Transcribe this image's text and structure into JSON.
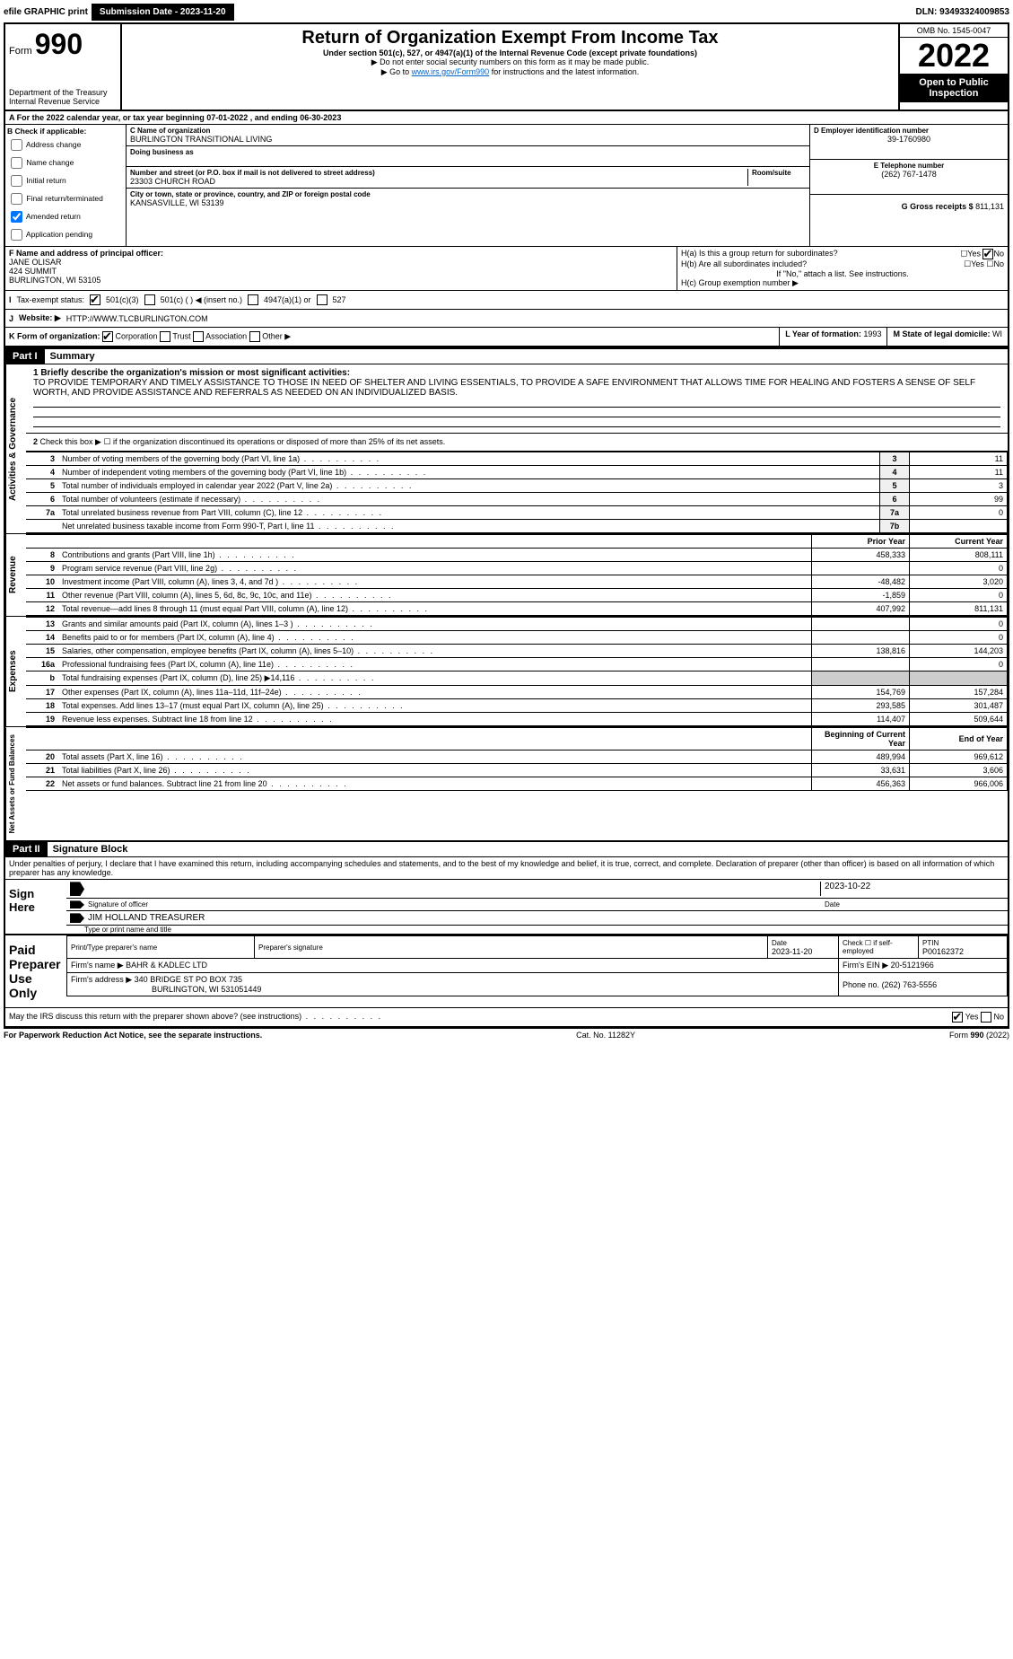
{
  "header": {
    "efile": "efile GRAPHIC print",
    "submission_label": "Submission Date - 2023-11-20",
    "dln": "DLN: 93493324009853"
  },
  "form": {
    "form_label": "Form",
    "form_number": "990",
    "title": "Return of Organization Exempt From Income Tax",
    "subtitle": "Under section 501(c), 527, or 4947(a)(1) of the Internal Revenue Code (except private foundations)",
    "ssn_warning": "▶ Do not enter social security numbers on this form as it may be made public.",
    "goto_prefix": "▶ Go to ",
    "goto_link": "www.irs.gov/Form990",
    "goto_suffix": " for instructions and the latest information.",
    "dept": "Department of the Treasury",
    "irs": "Internal Revenue Service",
    "omb": "OMB No. 1545-0047",
    "year": "2022",
    "open_public": "Open to Public Inspection"
  },
  "section_a": {
    "line": "A For the 2022 calendar year, or tax year beginning 07-01-2022   , and ending 06-30-2023"
  },
  "section_b": {
    "header": "B Check if applicable:",
    "items": [
      "Address change",
      "Name change",
      "Initial return",
      "Final return/terminated",
      "Amended return",
      "Application pending"
    ],
    "checked_amended": true
  },
  "section_c": {
    "name_label": "C Name of organization",
    "name": "BURLINGTON TRANSITIONAL LIVING",
    "dba_label": "Doing business as",
    "addr_label": "Number and street (or P.O. box if mail is not delivered to street address)",
    "room_label": "Room/suite",
    "addr": "23303 CHURCH ROAD",
    "city_label": "City or town, state or province, country, and ZIP or foreign postal code",
    "city": "KANSASVILLE, WI  53139"
  },
  "section_d": {
    "label": "D Employer identification number",
    "ein": "39-1760980"
  },
  "section_e": {
    "label": "E Telephone number",
    "phone": "(262) 767-1478"
  },
  "section_g": {
    "label": "G Gross receipts $",
    "amount": "811,131"
  },
  "section_f": {
    "label": "F  Name and address of principal officer:",
    "name": "JANE OLISAR",
    "addr1": "424 SUMMIT",
    "addr2": "BURLINGTON, WI  53105"
  },
  "section_h": {
    "ha": "H(a)  Is this a group return for subordinates?",
    "hb": "H(b)  Are all subordinates included?",
    "hb_note": "If \"No,\" attach a list. See instructions.",
    "hc": "H(c)  Group exemption number ▶",
    "yes": "Yes",
    "no": "No"
  },
  "tax_exempt": {
    "label": "Tax-exempt status:",
    "opt1": "501(c)(3)",
    "opt2": "501(c) (   ) ◀ (insert no.)",
    "opt3": "4947(a)(1) or",
    "opt4": "527"
  },
  "section_j": {
    "label": "J",
    "website_label": "Website: ▶",
    "website": "HTTP://WWW.TLCBURLINGTON.COM"
  },
  "section_k": {
    "label": "K Form of organization:",
    "opts": [
      "Corporation",
      "Trust",
      "Association",
      "Other ▶"
    ]
  },
  "section_l": {
    "label": "L Year of formation:",
    "year": "1993"
  },
  "section_m": {
    "label": "M State of legal domicile:",
    "state": "WI"
  },
  "part1": {
    "header": "Part I",
    "title": "Summary",
    "line1_label": "1 Briefly describe the organization's mission or most significant activities:",
    "mission": "TO PROVIDE TEMPORARY AND TIMELY ASSISTANCE TO THOSE IN NEED OF SHELTER AND LIVING ESSENTIALS, TO PROVIDE A SAFE ENVIRONMENT THAT ALLOWS TIME FOR HEALING AND FOSTERS A SENSE OF SELF WORTH, AND PROVIDE ASSISTANCE AND REFERRALS AS NEEDED ON AN INDIVIDUALIZED BASIS.",
    "line2": "Check this box ▶ ☐ if the organization discontinued its operations or disposed of more than 25% of its net assets.",
    "governance_rows": [
      {
        "n": "3",
        "desc": "Number of voting members of the governing body (Part VI, line 1a)",
        "box": "3",
        "val": "11"
      },
      {
        "n": "4",
        "desc": "Number of independent voting members of the governing body (Part VI, line 1b)",
        "box": "4",
        "val": "11"
      },
      {
        "n": "5",
        "desc": "Total number of individuals employed in calendar year 2022 (Part V, line 2a)",
        "box": "5",
        "val": "3"
      },
      {
        "n": "6",
        "desc": "Total number of volunteers (estimate if necessary)",
        "box": "6",
        "val": "99"
      },
      {
        "n": "7a",
        "desc": "Total unrelated business revenue from Part VIII, column (C), line 12",
        "box": "7a",
        "val": "0"
      },
      {
        "n": "",
        "desc": "Net unrelated business taxable income from Form 990-T, Part I, line 11",
        "box": "7b",
        "val": ""
      }
    ],
    "prior_year": "Prior Year",
    "current_year": "Current Year",
    "revenue_rows": [
      {
        "n": "8",
        "desc": "Contributions and grants (Part VIII, line 1h)",
        "py": "458,333",
        "cy": "808,111"
      },
      {
        "n": "9",
        "desc": "Program service revenue (Part VIII, line 2g)",
        "py": "",
        "cy": "0"
      },
      {
        "n": "10",
        "desc": "Investment income (Part VIII, column (A), lines 3, 4, and 7d )",
        "py": "-48,482",
        "cy": "3,020"
      },
      {
        "n": "11",
        "desc": "Other revenue (Part VIII, column (A), lines 5, 6d, 8c, 9c, 10c, and 11e)",
        "py": "-1,859",
        "cy": "0"
      },
      {
        "n": "12",
        "desc": "Total revenue—add lines 8 through 11 (must equal Part VIII, column (A), line 12)",
        "py": "407,992",
        "cy": "811,131"
      }
    ],
    "expense_rows": [
      {
        "n": "13",
        "desc": "Grants and similar amounts paid (Part IX, column (A), lines 1–3 )",
        "py": "",
        "cy": "0"
      },
      {
        "n": "14",
        "desc": "Benefits paid to or for members (Part IX, column (A), line 4)",
        "py": "",
        "cy": "0"
      },
      {
        "n": "15",
        "desc": "Salaries, other compensation, employee benefits (Part IX, column (A), lines 5–10)",
        "py": "138,816",
        "cy": "144,203"
      },
      {
        "n": "16a",
        "desc": "Professional fundraising fees (Part IX, column (A), line 11e)",
        "py": "",
        "cy": "0"
      },
      {
        "n": "b",
        "desc": "Total fundraising expenses (Part IX, column (D), line 25) ▶14,116",
        "py": "shaded",
        "cy": "shaded"
      },
      {
        "n": "17",
        "desc": "Other expenses (Part IX, column (A), lines 11a–11d, 11f–24e)",
        "py": "154,769",
        "cy": "157,284"
      },
      {
        "n": "18",
        "desc": "Total expenses. Add lines 13–17 (must equal Part IX, column (A), line 25)",
        "py": "293,585",
        "cy": "301,487"
      },
      {
        "n": "19",
        "desc": "Revenue less expenses. Subtract line 18 from line 12",
        "py": "114,407",
        "cy": "509,644"
      }
    ],
    "begin_year": "Beginning of Current Year",
    "end_year": "End of Year",
    "asset_rows": [
      {
        "n": "20",
        "desc": "Total assets (Part X, line 16)",
        "py": "489,994",
        "cy": "969,612"
      },
      {
        "n": "21",
        "desc": "Total liabilities (Part X, line 26)",
        "py": "33,631",
        "cy": "3,606"
      },
      {
        "n": "22",
        "desc": "Net assets or fund balances. Subtract line 21 from line 20",
        "py": "456,363",
        "cy": "966,006"
      }
    ],
    "vlabels": {
      "gov": "Activities & Governance",
      "rev": "Revenue",
      "exp": "Expenses",
      "net": "Net Assets or Fund Balances"
    }
  },
  "part2": {
    "header": "Part II",
    "title": "Signature Block",
    "penalty": "Under penalties of perjury, I declare that I have examined this return, including accompanying schedules and statements, and to the best of my knowledge and belief, it is true, correct, and complete. Declaration of preparer (other than officer) is based on all information of which preparer has any knowledge.",
    "sign_here": "Sign Here",
    "sig_date": "2023-10-22",
    "sig_officer_label": "Signature of officer",
    "date_label": "Date",
    "officer_name": "JIM HOLLAND  TREASURER",
    "type_name_label": "Type or print name and title",
    "paid_prep": "Paid Preparer Use Only",
    "prep_name_label": "Print/Type preparer's name",
    "prep_sig_label": "Preparer's signature",
    "prep_date": "2023-11-20",
    "check_if": "Check ☐ if self-employed",
    "ptin_label": "PTIN",
    "ptin": "P00162372",
    "firm_name_label": "Firm's name    ▶",
    "firm_name": "BAHR & KADLEC LTD",
    "firm_ein_label": "Firm's EIN ▶",
    "firm_ein": "20-5121966",
    "firm_addr_label": "Firm's address ▶",
    "firm_addr1": "340 BRIDGE ST PO BOX 735",
    "firm_addr2": "BURLINGTON, WI  531051449",
    "firm_phone_label": "Phone no.",
    "firm_phone": "(262) 763-5556",
    "may_irs": "May the IRS discuss this return with the preparer shown above? (see instructions)",
    "yes": "Yes",
    "no": "No"
  },
  "footer": {
    "paperwork": "For Paperwork Reduction Act Notice, see the separate instructions.",
    "cat": "Cat. No. 11282Y",
    "form": "Form 990 (2022)"
  }
}
